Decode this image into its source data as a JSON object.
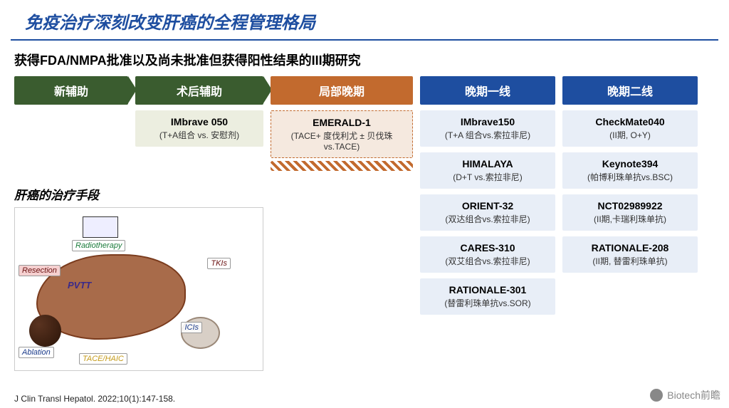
{
  "title": "免疫治疗深刻改变肝癌的全程管理格局",
  "subtitle": "获得FDA/NMPA批准以及尚未批准但获得阳性结果的III期研究",
  "colors": {
    "primary_blue": "#1e4ea0",
    "green": "#3a5c2f",
    "orange": "#c26a2e",
    "box_blue": "#e8eef7",
    "box_olive": "#eceee0",
    "box_peach": "#f5e9df"
  },
  "columns": [
    {
      "header": "新辅助",
      "color": "green",
      "arrow": true,
      "studies": []
    },
    {
      "header": "术后辅助",
      "color": "green",
      "arrow": true,
      "studies": [
        {
          "name": "IMbrave 050",
          "desc": "(T+A组合 vs. 安慰剂)",
          "style": "olive"
        }
      ]
    },
    {
      "header": "局部晚期",
      "color": "orange",
      "arrow": false,
      "studies": [
        {
          "name": "EMERALD-1",
          "desc": "(TACE+ 度伐利尤 ± 贝伐珠 vs.TACE)",
          "style": "peach",
          "deco": true
        }
      ]
    },
    {
      "header": "晚期一线",
      "color": "blue",
      "arrow": false,
      "studies": [
        {
          "name": "IMbrave150",
          "desc": "(T+A 组合vs.索拉非尼)",
          "style": "blue"
        },
        {
          "name": "HIMALAYA",
          "desc": "(D+T vs.索拉非尼)",
          "style": "blue"
        },
        {
          "name": "ORIENT-32",
          "desc": "(双达组合vs.索拉非尼)",
          "style": "blue"
        },
        {
          "name": "CARES-310",
          "desc": "(双艾组合vs.索拉非尼)",
          "style": "blue"
        },
        {
          "name": "RATIONALE-301",
          "desc": "(替雷利珠单抗vs.SOR)",
          "style": "blue"
        }
      ]
    },
    {
      "header": "晚期二线",
      "color": "blue",
      "arrow": false,
      "studies": [
        {
          "name": "CheckMate040",
          "desc": "(II期, O+Y)",
          "style": "blue"
        },
        {
          "name": "Keynote394",
          "desc": "(帕博利珠单抗vs.BSC)",
          "style": "blue"
        },
        {
          "name": "NCT02989922",
          "desc": "(II期,卡瑞利珠单抗)",
          "style": "blue"
        },
        {
          "name": "RATIONALE-208",
          "desc": "(II期, 替雷利珠单抗)",
          "style": "blue"
        }
      ]
    }
  ],
  "left_section": {
    "title": "肝癌的治疗手段",
    "tags": {
      "resection": "Resection",
      "radiotherapy": "Radiotherapy",
      "tkis": "TKIs",
      "pvtt": "PVTT",
      "icis": "ICIs",
      "ablation": "Ablation",
      "tace": "TACE/HAIC"
    }
  },
  "citation": "J Clin Transl Hepatol. 2022;10(1):147-158.",
  "watermark": "Biotech前瞻"
}
